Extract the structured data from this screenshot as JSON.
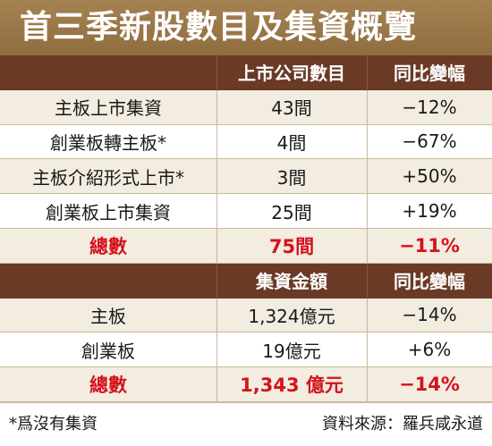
{
  "title": "首三季新股數目及集資概覽",
  "section1": {
    "header": {
      "col1": "",
      "col2": "上市公司數目",
      "col3": "同比變幅"
    },
    "rows": [
      {
        "label": "主板上市集資",
        "value": "43間",
        "change": "−12%"
      },
      {
        "label": "創業板轉主板*",
        "value": "4間",
        "change": "−67%"
      },
      {
        "label": "主板介紹形式上市*",
        "value": "3間",
        "change": "+50%"
      },
      {
        "label": "創業板上市集資",
        "value": "25間",
        "change": "+19%"
      }
    ],
    "total": {
      "label": "總數",
      "value": "75間",
      "change": "−11%"
    }
  },
  "section2": {
    "header": {
      "col1": "",
      "col2": "集資金額",
      "col3": "同比變幅"
    },
    "rows": [
      {
        "label": "主板",
        "value": "1,324億元",
        "change": "−14%"
      },
      {
        "label": "創業板",
        "value": "19億元",
        "change": "+6%"
      }
    ],
    "total": {
      "label": "總數",
      "value": "1,343 億元",
      "change": "−14%"
    }
  },
  "footnote": "*爲沒有集資",
  "source": "資料來源：羅兵咸永道",
  "colors": {
    "title_bg": "#9a7848",
    "header_bg": "#6a3a26",
    "row_alt": "#f3ece0",
    "total_text": "#d4131b"
  }
}
